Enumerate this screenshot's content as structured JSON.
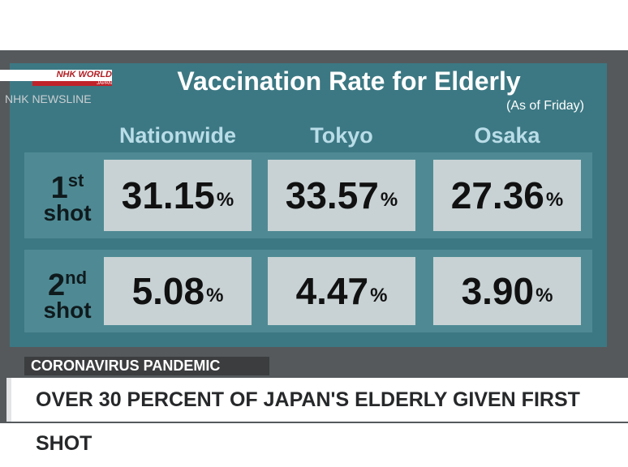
{
  "logo": {
    "brand": "NHK WORLD",
    "sub": "JAPAN",
    "program": "NHK NEWSLINE"
  },
  "table": {
    "title": "Vaccination Rate for Elderly",
    "subtitle": "(As of Friday)",
    "columns": [
      "Nationwide",
      "Tokyo",
      "Osaka"
    ],
    "rows": [
      {
        "label": {
          "num": "1",
          "suffix": "st",
          "word": "shot"
        },
        "cells": [
          {
            "value": "31.15",
            "unit": "%"
          },
          {
            "value": "33.57",
            "unit": "%"
          },
          {
            "value": "27.36",
            "unit": "%"
          }
        ]
      },
      {
        "label": {
          "num": "2",
          "suffix": "nd",
          "word": "shot"
        },
        "cells": [
          {
            "value": "5.08",
            "unit": "%"
          },
          {
            "value": "4.47",
            "unit": "%"
          },
          {
            "value": "3.90",
            "unit": "%"
          }
        ]
      }
    ]
  },
  "banner": {
    "tag": "CORONAVIRUS PANDEMIC",
    "headline": "OVER 30 PERCENT OF JAPAN'S ELDERLY GIVEN FIRST SHOT"
  }
}
